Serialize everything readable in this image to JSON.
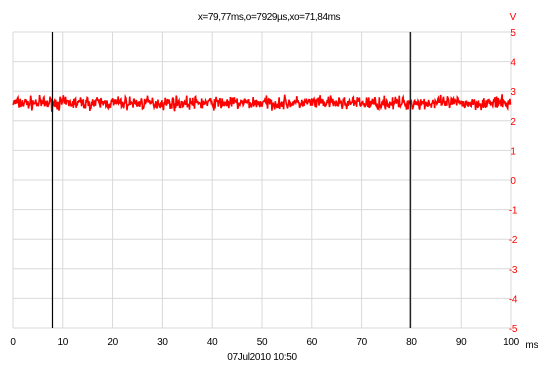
{
  "cursor_readout": "x=79,77ms,o=7929µs,xo=71,84ms",
  "timestamp": "07Jul2010  10:50",
  "colors": {
    "signal": "#ff0000",
    "y_axis_text": "#ff0000",
    "grid": "#d9d9d9",
    "cursor": "#000000",
    "axis": "#000000",
    "background": "#ffffff"
  },
  "chart_data": {
    "type": "line",
    "title": "",
    "xlabel": "ms",
    "ylabel": "V",
    "xlim": [
      0,
      100
    ],
    "ylim": [
      -5,
      5
    ],
    "x_ticks": [
      "0",
      "10",
      "20",
      "30",
      "40",
      "50",
      "60",
      "70",
      "80",
      "90",
      "100"
    ],
    "y_ticks": [
      "5",
      "4",
      "3",
      "2",
      "1",
      "0",
      "-1",
      "-2",
      "-3",
      "-4",
      "-5"
    ],
    "grid": true,
    "cursors_ms": [
      7.93,
      79.77
    ],
    "series": [
      {
        "color": "#ff0000",
        "mean": 2.6,
        "min": 2.3,
        "max": 2.95,
        "x_range": [
          0,
          100
        ],
        "note_values": "noise signal around mean"
      }
    ]
  }
}
